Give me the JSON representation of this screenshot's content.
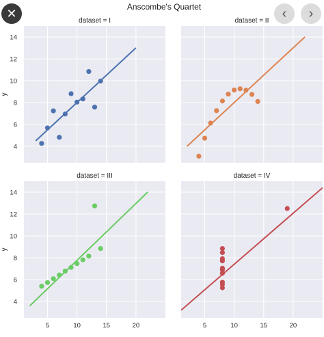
{
  "viewer": {
    "close_icon": "close-icon",
    "prev_icon": "chevron-left-icon",
    "next_icon": "chevron-right-icon"
  },
  "chart_data": {
    "type": "scatter",
    "title": "Anscombe's Quartet",
    "panels": [
      {
        "subtitle": "dataset = I",
        "color": "#4c72b0",
        "x": [
          10,
          8,
          13,
          9,
          11,
          14,
          6,
          4,
          12,
          7,
          5
        ],
        "y": [
          8.04,
          6.95,
          7.58,
          8.81,
          8.33,
          9.96,
          7.24,
          4.26,
          10.84,
          4.82,
          5.68
        ],
        "fit": {
          "x": [
            3,
            20
          ],
          "y": [
            4.5,
            13.0
          ]
        },
        "ylabel": "y",
        "yticks": [
          4,
          6,
          8,
          10,
          12,
          14
        ],
        "xticks": []
      },
      {
        "subtitle": "dataset = II",
        "color": "#dd8452",
        "x": [
          10,
          8,
          13,
          9,
          11,
          14,
          6,
          4,
          12,
          7,
          5
        ],
        "y": [
          9.14,
          8.14,
          8.74,
          8.77,
          9.26,
          8.1,
          6.13,
          3.1,
          9.13,
          7.26,
          4.74
        ],
        "fit": {
          "x": [
            2,
            22
          ],
          "y": [
            4.0,
            14.0
          ]
        },
        "ylabel": "",
        "yticks": [],
        "xticks": []
      },
      {
        "subtitle": "dataset = III",
        "color": "#6acc64",
        "x": [
          10,
          8,
          13,
          9,
          11,
          14,
          6,
          4,
          12,
          7,
          5
        ],
        "y": [
          7.46,
          6.77,
          12.74,
          7.11,
          7.81,
          8.84,
          6.08,
          5.39,
          8.15,
          6.42,
          5.73
        ],
        "fit": {
          "x": [
            2,
            22
          ],
          "y": [
            3.6,
            14.0
          ]
        },
        "ylabel": "y",
        "yticks": [
          4,
          6,
          8,
          10,
          12,
          14
        ],
        "xticks": [
          5,
          10,
          15,
          20
        ]
      },
      {
        "subtitle": "dataset = IV",
        "color": "#c44e52",
        "x": [
          8,
          8,
          8,
          8,
          8,
          8,
          8,
          19,
          8,
          8,
          8
        ],
        "y": [
          6.58,
          5.76,
          7.71,
          8.84,
          8.47,
          7.04,
          5.25,
          12.5,
          5.56,
          7.91,
          6.89
        ],
        "fit": {
          "x": [
            1,
            25
          ],
          "y": [
            3.2,
            14.4
          ]
        },
        "ylabel": "",
        "yticks": [],
        "xticks": [
          5,
          10,
          15,
          20
        ]
      }
    ],
    "xlim": [
      1,
      25
    ],
    "ylim": [
      2.5,
      15
    ],
    "grid": true,
    "panel_background": "#eaeaf2",
    "grid_color": "#ffffff"
  }
}
